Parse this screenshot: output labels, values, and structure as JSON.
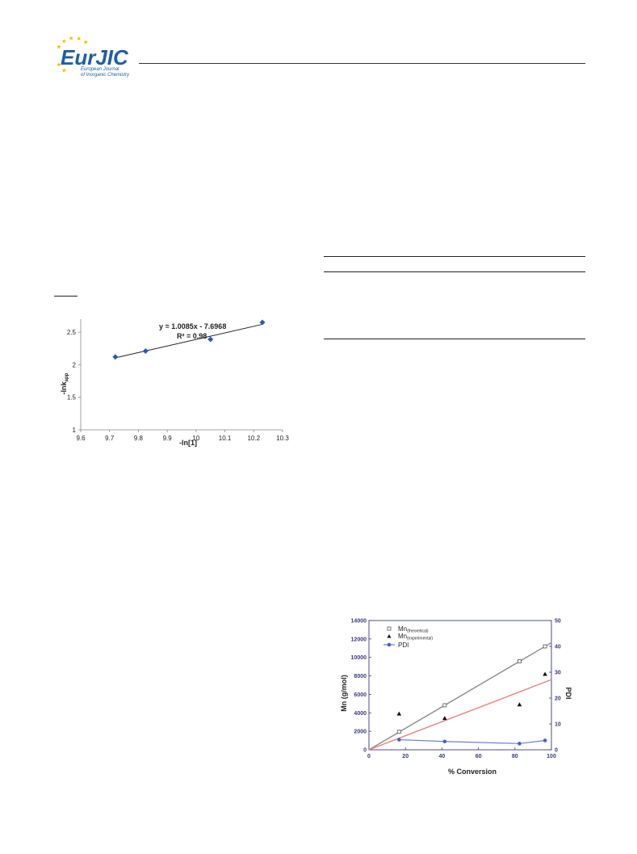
{
  "header": {
    "logo_text": "EurJIC",
    "logo_subtitle_1": "European Journal",
    "logo_subtitle_2": "of Inorganic Chemistry",
    "brand_color": "#1d5fa0",
    "accent_color": "#f4c20d"
  },
  "chart_data": [
    {
      "type": "scatter",
      "title": "",
      "xlabel": "-ln[1]",
      "ylabel": "-lnk_app",
      "xlim": [
        9.6,
        10.3
      ],
      "ylim": [
        1,
        2.5
      ],
      "x_ticks": [
        "9.6",
        "9.7",
        "9.8",
        "9.9",
        "10",
        "10.1",
        "10.2",
        "10.3"
      ],
      "y_ticks": [
        "1",
        "1.5",
        "2",
        "2.5"
      ],
      "grid": false,
      "series": [
        {
          "x": [
            9.72,
            9.825,
            10.05,
            10.23
          ],
          "y": [
            2.12,
            2.21,
            2.39,
            2.65
          ],
          "color": "#2e5aa8",
          "marker": "diamond"
        }
      ],
      "trendline": {
        "slope": 1.0085,
        "intercept": -7.6968
      },
      "annotations": [
        "y = 1.0085x - 7.6968",
        "R² = 0.98"
      ]
    },
    {
      "type": "scatter",
      "title": "",
      "xlabel": "% Conversion",
      "ylabel": "Mn (g/mol)",
      "y2label": "PDI",
      "xlim": [
        0,
        100
      ],
      "ylim": [
        0,
        14000
      ],
      "y2lim": [
        0,
        50
      ],
      "x_ticks": [
        "0",
        "20",
        "40",
        "60",
        "80",
        "100"
      ],
      "y_ticks": [
        "0",
        "2000",
        "4000",
        "6000",
        "8000",
        "10000",
        "12000",
        "14000"
      ],
      "y2_ticks": [
        "0",
        "10",
        "20",
        "30",
        "40",
        "50"
      ],
      "legend": "top-left",
      "grid": false,
      "series": [
        {
          "name": "Mn(theoretical)",
          "marker": "square",
          "color": "#555555",
          "x": [
            16.5,
            41.5,
            82.5,
            96.5
          ],
          "y": [
            1950,
            4820,
            9580,
            11200
          ]
        },
        {
          "name": "Mn(experimental)",
          "marker": "triangle",
          "color": "#111111",
          "x": [
            16.5,
            41.5,
            82.5,
            96.5
          ],
          "y": [
            3880,
            3400,
            4880,
            8180
          ]
        },
        {
          "name": "PDI",
          "marker": "circle",
          "color": "#4a5fc8",
          "x": [
            16.5,
            41.5,
            82.5,
            96.5
          ],
          "y": [
            3.9,
            3.2,
            2.4,
            3.6
          ]
        }
      ],
      "lines": [
        {
          "from": [
            0,
            0
          ],
          "to": [
            100,
            11600
          ],
          "color": "#8a8a8a"
        },
        {
          "from": [
            0,
            0
          ],
          "to": [
            100,
            7600
          ],
          "color": "#e88080"
        }
      ],
      "legend_labels": {
        "l1_main": "Mn",
        "l1_sub": "(theoretical)",
        "l2_main": "Mn",
        "l2_sub": "(experimental)",
        "l3": "PDI"
      }
    }
  ]
}
